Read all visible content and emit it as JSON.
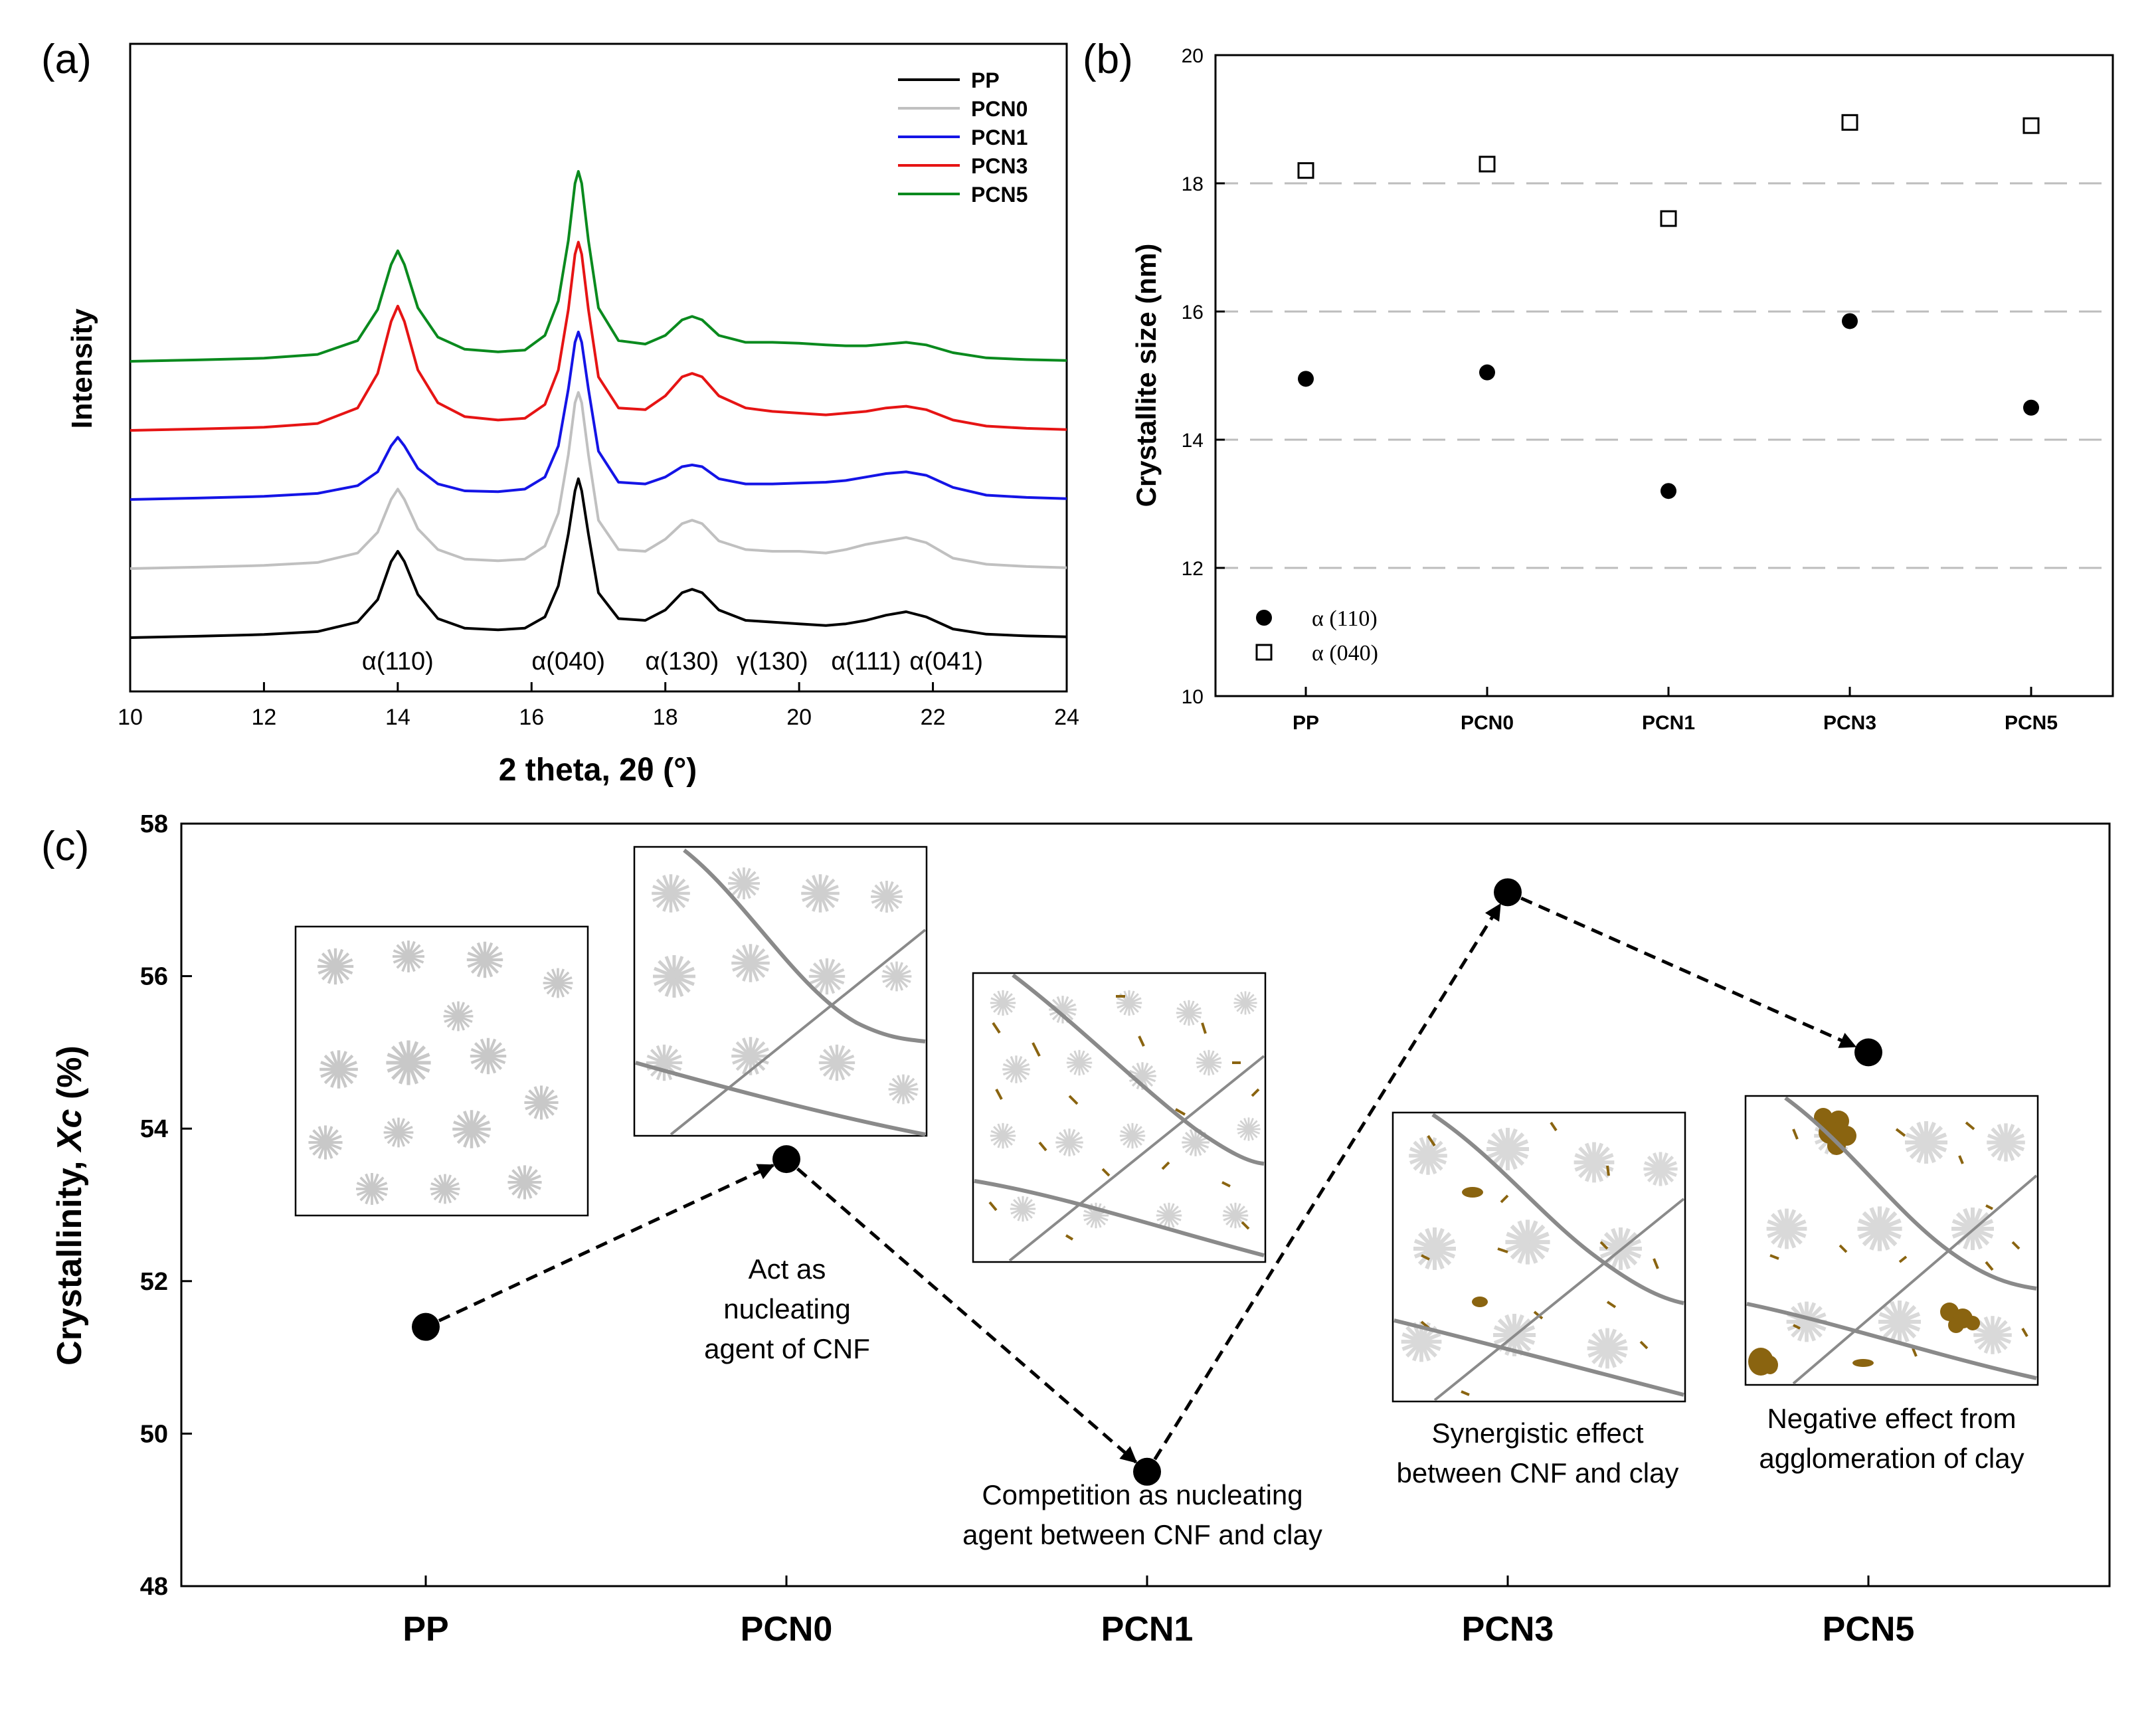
{
  "panel_labels": {
    "a": "(a)",
    "b": "(b)",
    "c": "(c)"
  },
  "colors": {
    "PP": "#000000",
    "PCN0": "#c0c0c0",
    "PCN1": "#1414e6",
    "PCN3": "#e61414",
    "PCN5": "#0a8a1e",
    "clay": "#8a6410"
  },
  "chart_data": [
    {
      "id": "a",
      "type": "line",
      "title": "",
      "xlabel": "2 theta, 2θ (°)",
      "ylabel": "Intensity",
      "xlim": [
        10,
        24
      ],
      "xticks": [
        10,
        12,
        14,
        16,
        18,
        20,
        22,
        24
      ],
      "x": [
        10,
        11,
        12,
        12.8,
        13.4,
        13.7,
        13.9,
        14.0,
        14.1,
        14.3,
        14.6,
        15.0,
        15.5,
        15.9,
        16.2,
        16.4,
        16.55,
        16.65,
        16.7,
        16.75,
        16.85,
        17.0,
        17.3,
        17.7,
        18.0,
        18.25,
        18.4,
        18.55,
        18.8,
        19.2,
        19.6,
        20.0,
        20.4,
        20.7,
        21.0,
        21.3,
        21.6,
        21.9,
        22.3,
        22.8,
        23.4,
        24
      ],
      "series": [
        {
          "name": "PP",
          "values": [
            0,
            0.08,
            0.18,
            0.35,
            0.9,
            2.2,
            4.4,
            5.0,
            4.4,
            2.5,
            1.1,
            0.55,
            0.45,
            0.55,
            1.2,
            3.0,
            6.0,
            8.5,
            9.2,
            8.5,
            6.0,
            2.6,
            1.1,
            1.0,
            1.6,
            2.6,
            2.8,
            2.6,
            1.6,
            1.0,
            0.9,
            0.8,
            0.7,
            0.8,
            1.0,
            1.3,
            1.5,
            1.2,
            0.5,
            0.2,
            0.1,
            0.05
          ]
        },
        {
          "name": "PCN0",
          "values": [
            0,
            0.08,
            0.18,
            0.35,
            0.9,
            2.1,
            4.0,
            4.6,
            4.0,
            2.3,
            1.1,
            0.55,
            0.45,
            0.55,
            1.3,
            3.2,
            6.6,
            9.6,
            10.2,
            9.6,
            6.6,
            2.8,
            1.1,
            1.0,
            1.7,
            2.6,
            2.8,
            2.6,
            1.6,
            1.1,
            1.0,
            1.0,
            0.9,
            1.1,
            1.4,
            1.6,
            1.8,
            1.5,
            0.6,
            0.25,
            0.12,
            0.05
          ]
        },
        {
          "name": "PCN1",
          "values": [
            0,
            0.08,
            0.18,
            0.35,
            0.8,
            1.6,
            3.1,
            3.6,
            3.1,
            1.8,
            0.9,
            0.5,
            0.45,
            0.6,
            1.3,
            3.1,
            6.4,
            9.1,
            9.7,
            9.1,
            6.4,
            2.8,
            1.0,
            0.9,
            1.3,
            1.9,
            2.0,
            1.9,
            1.2,
            0.9,
            0.9,
            0.95,
            1.0,
            1.1,
            1.3,
            1.5,
            1.6,
            1.4,
            0.7,
            0.25,
            0.12,
            0.05
          ]
        },
        {
          "name": "PCN3",
          "values": [
            0,
            0.08,
            0.18,
            0.4,
            1.3,
            3.3,
            6.3,
            7.2,
            6.3,
            3.5,
            1.6,
            0.8,
            0.6,
            0.7,
            1.5,
            3.5,
            7.0,
            10.2,
            10.9,
            10.2,
            7.0,
            3.1,
            1.3,
            1.2,
            2.0,
            3.1,
            3.3,
            3.1,
            2.0,
            1.3,
            1.1,
            1.0,
            0.9,
            1.0,
            1.1,
            1.3,
            1.4,
            1.2,
            0.6,
            0.25,
            0.12,
            0.05
          ]
        },
        {
          "name": "PCN5",
          "values": [
            0,
            0.08,
            0.18,
            0.4,
            1.2,
            3.0,
            5.6,
            6.4,
            5.6,
            3.1,
            1.4,
            0.7,
            0.55,
            0.65,
            1.5,
            3.5,
            7.0,
            10.3,
            11.0,
            10.3,
            7.0,
            3.1,
            1.2,
            1.0,
            1.5,
            2.4,
            2.6,
            2.4,
            1.5,
            1.1,
            1.1,
            1.05,
            0.95,
            0.9,
            0.9,
            1.0,
            1.1,
            0.95,
            0.5,
            0.2,
            0.1,
            0.05
          ]
        }
      ],
      "offsets": [
        0,
        4,
        8,
        12,
        16
      ],
      "legend": [
        "PP",
        "PCN0",
        "PCN1",
        "PCN3",
        "PCN5"
      ],
      "legend_position": "top-right",
      "annotations": [
        {
          "label": "α(110)",
          "x": 14.0
        },
        {
          "label": "α(040)",
          "x": 16.55
        },
        {
          "label": "α(130)",
          "x": 18.25
        },
        {
          "label": "γ(130)",
          "x": 19.6
        },
        {
          "label": "α(111)",
          "x": 21.0
        },
        {
          "label": "α(041)",
          "x": 22.2
        }
      ]
    },
    {
      "id": "b",
      "type": "scatter",
      "title": "",
      "xlabel": "",
      "ylabel": "Crystallite size (nm)",
      "categories": [
        "PP",
        "PCN0",
        "PCN1",
        "PCN3",
        "PCN5"
      ],
      "ylim": [
        10,
        20
      ],
      "yticks": [
        10,
        12,
        14,
        16,
        18,
        20
      ],
      "gridlines": [
        12,
        14,
        16,
        18
      ],
      "series": [
        {
          "name": "α (110)",
          "marker": "filled-circle",
          "values": [
            14.95,
            15.05,
            13.2,
            15.85,
            14.5
          ]
        },
        {
          "name": "α (040)",
          "marker": "open-square",
          "values": [
            18.2,
            18.3,
            17.45,
            18.95,
            18.9
          ]
        }
      ],
      "legend_position": "bottom-left"
    },
    {
      "id": "c",
      "type": "line",
      "title": "",
      "xlabel": "",
      "ylabel": "Crystallinity, Xc (%)",
      "categories": [
        "PP",
        "PCN0",
        "PCN1",
        "PCN3",
        "PCN5"
      ],
      "ylim": [
        48,
        58
      ],
      "yticks": [
        48,
        50,
        52,
        54,
        56,
        58
      ],
      "series": [
        {
          "name": "Xc",
          "values": [
            51.4,
            53.6,
            49.5,
            57.1,
            55.0
          ]
        }
      ],
      "line_style": "dashed-arrows",
      "annotations": [
        {
          "category": "PCN0",
          "text": [
            "Act as",
            "nucleating",
            "agent of CNF"
          ]
        },
        {
          "category": "PCN1",
          "text": [
            "Competition as nucleating",
            "agent between CNF and clay"
          ]
        },
        {
          "category": "PCN3",
          "text": [
            "Synergistic effect",
            "between CNF and clay"
          ]
        },
        {
          "category": "PCN5",
          "text": [
            "Negative effect from",
            "agglomeration of clay"
          ]
        }
      ]
    }
  ]
}
